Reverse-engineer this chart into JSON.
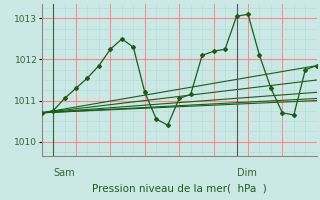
{
  "background_color": "#cce8e4",
  "plot_bg_color": "#cce8e4",
  "grid_color_major_h": "#ff8888",
  "grid_color_major_v": "#ff8888",
  "grid_color_minor": "#aaddda",
  "line_color": "#1a5c1a",
  "marker_color": "#1a5c1a",
  "xlabel": "Pression niveau de la mer(  hPa  )",
  "yticks": [
    1010,
    1011,
    1012,
    1013
  ],
  "ylim": [
    1009.65,
    1013.35
  ],
  "xlim": [
    0,
    48
  ],
  "sam_x": 2,
  "dim_x": 34,
  "sam_label": "Sam",
  "dim_label": "Dim",
  "main_series_x": [
    0,
    2,
    4,
    6,
    8,
    10,
    12,
    14,
    16,
    18,
    20,
    22,
    24,
    26,
    28,
    30,
    32,
    34,
    36,
    38,
    40,
    42,
    44,
    46,
    48
  ],
  "main_series_y": [
    1010.7,
    1010.75,
    1011.05,
    1011.3,
    1011.55,
    1011.85,
    1012.25,
    1012.5,
    1012.3,
    1011.2,
    1010.55,
    1010.4,
    1011.05,
    1011.15,
    1012.1,
    1012.2,
    1012.25,
    1013.05,
    1013.1,
    1012.1,
    1011.3,
    1010.7,
    1010.65,
    1011.75,
    1011.85
  ],
  "trend_lines": [
    {
      "x0": 0,
      "y0": 1010.7,
      "x1": 48,
      "y1": 1011.85
    },
    {
      "x0": 0,
      "y0": 1010.7,
      "x1": 48,
      "y1": 1011.5
    },
    {
      "x0": 0,
      "y0": 1010.7,
      "x1": 48,
      "y1": 1011.2
    },
    {
      "x0": 0,
      "y0": 1010.7,
      "x1": 48,
      "y1": 1011.05
    },
    {
      "x0": 0,
      "y0": 1010.7,
      "x1": 48,
      "y1": 1011.0
    }
  ]
}
